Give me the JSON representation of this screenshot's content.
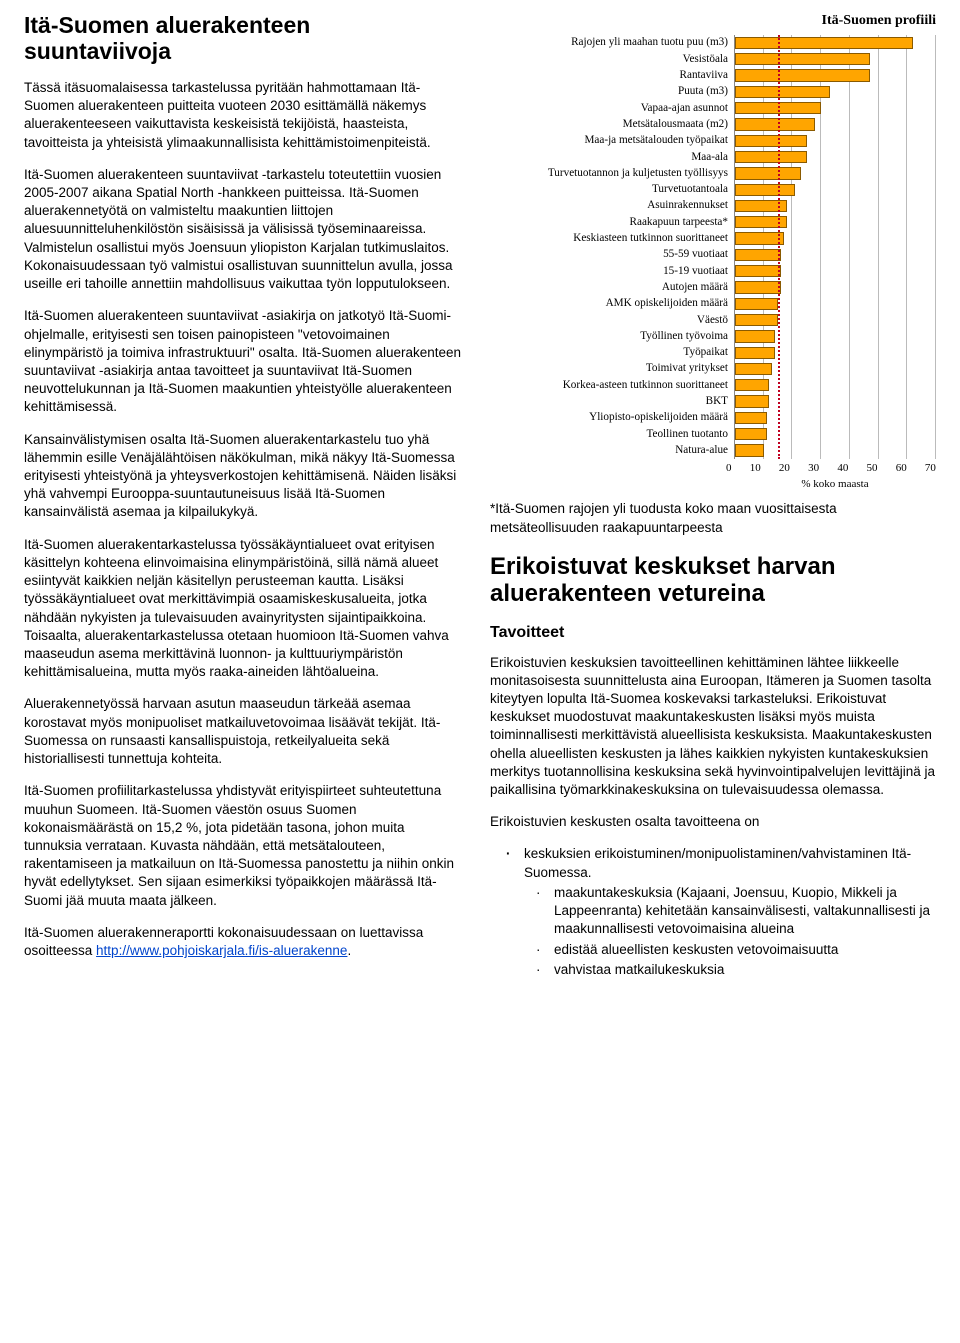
{
  "left": {
    "title": "Itä-Suomen aluerakenteen suuntaviivoja",
    "p1": "Tässä itäsuomalaisessa tarkastelussa pyritään hahmottamaan Itä-Suomen aluerakenteen puitteita vuoteen 2030 esittämällä näkemys aluerakenteeseen vaikuttavista keskeisistä tekijöistä, haasteista, tavoitteista ja yhteisistä ylimaakunnallisista kehittämistoimenpiteistä.",
    "p2": "Itä-Suomen aluerakenteen suuntaviivat -tarkastelu toteutettiin vuosien 2005-2007 aikana Spatial North -hankkeen puitteissa. Itä-Suomen aluerakennetyötä on valmisteltu maakuntien liittojen aluesuunnitteluhenkilöstön sisäisissä ja välisissä työseminaareissa. Valmistelun osallistui myös Joensuun yliopiston Karjalan tutkimuslaitos. Kokonaisuudessaan työ valmistui osallistuvan suunnittelun avulla, jossa useille eri tahoille annettiin mahdollisuus vaikuttaa työn lopputulokseen.",
    "p3": "Itä-Suomen aluerakenteen suuntaviivat -asiakirja on jatkotyö Itä-Suomi-ohjelmalle, erityisesti sen toisen painopisteen \"vetovoimainen elinympäristö ja toimiva infrastruktuuri\" osalta. Itä-Suomen aluerakenteen suuntaviivat -asiakirja antaa tavoitteet ja suuntaviivat Itä-Suomen neuvottelukunnan ja Itä-Suomen maakuntien yhteistyölle aluerakenteen kehittämisessä.",
    "p4": "Kansainvälistymisen osalta Itä-Suomen aluerakentarkastelu tuo yhä lähemmin esille Venäjälähtöisen näkökulman, mikä näkyy Itä-Suomessa erityisesti yhteistyönä ja yhteysverkostojen kehittämisenä. Näiden lisäksi yhä vahvempi Eurooppa-suuntautuneisuus lisää Itä-Suomen kansainvälistä asemaa ja kilpailukykyä.",
    "p5": "Itä-Suomen aluerakentarkastelussa työssäkäyntialueet ovat erityisen käsittelyn kohteena elinvoimaisina elinympäristöinä, sillä nämä alueet esiintyvät kaikkien neljän käsitellyn perusteeman kautta. Lisäksi työssäkäyntialueet ovat merkittävimpiä osaamiskeskusalueita, jotka nähdään nykyisten ja tulevaisuuden avainyritysten sijaintipaikkoina. Toisaalta, aluerakentarkastelussa otetaan huomioon Itä-Suomen vahva maaseudun asema merkittävinä luonnon- ja kulttuuriympäristön kehittämisalueina, mutta myös raaka-aineiden lähtöalueina.",
    "p6": "Aluerakennetyössä harvaan asutun maaseudun tärkeää asemaa korostavat myös monipuoliset matkailuvetovoimaa lisäävät tekijät. Itä-Suomessa on runsaasti kansallispuistoja, retkeilyalueita sekä historiallisesti tunnettuja kohteita.",
    "p7": "Itä-Suomen profiilitarkastelussa yhdistyvät erityispiirteet suhteutettuna muuhun Suomeen. Itä-Suomen väestön osuus Suomen kokonaismäärästä on 15,2 %, jota pidetään tasona, johon muita tunnuksia verrataan. Kuvasta nähdään, että metsätalouteen, rakentamiseen ja matkailuun on Itä-Suomessa panostettu ja niihin onkin hyvät edellytykset. Sen sijaan esimerkiksi työpaikkojen määrässä Itä-Suomi jää muuta maata jälkeen.",
    "p8a": "Itä-Suomen aluerakenneraportti kokonaisuudessaan on luettavissa osoitteessa ",
    "p8link": "http://www.pohjoiskarjala.fi/is-aluerakenne",
    "p8b": "."
  },
  "chart": {
    "title": "Itä-Suomen profiili",
    "xlabel": "% koko maasta",
    "xmax": 70,
    "xticks": [
      "0",
      "10",
      "20",
      "30",
      "40",
      "50",
      "60",
      "70"
    ],
    "ref_value": 15.2,
    "bar_color": "#ffa500",
    "bar_border": "#8a5a00",
    "ref_color": "#c00020",
    "grid_color": "#bbbbbb",
    "items": [
      {
        "label": "Rajojen yli maahan tuotu puu (m3)",
        "value": 62
      },
      {
        "label": "Vesistöala",
        "value": 47
      },
      {
        "label": "Rantaviiva",
        "value": 47
      },
      {
        "label": "Puuta (m3)",
        "value": 33
      },
      {
        "label": "Vapaa-ajan asunnot",
        "value": 30
      },
      {
        "label": "Metsätalousmaata (m2)",
        "value": 28
      },
      {
        "label": "Maa-ja metsätalouden työpaikat",
        "value": 25
      },
      {
        "label": "Maa-ala",
        "value": 25
      },
      {
        "label": "Turvetuotannon ja kuljetusten työllisyys",
        "value": 23
      },
      {
        "label": "Turvetuotantoala",
        "value": 21
      },
      {
        "label": "Asuinrakennukset",
        "value": 18
      },
      {
        "label": "Raakapuun tarpeesta*",
        "value": 18
      },
      {
        "label": "Keskiasteen tutkinnon suorittaneet",
        "value": 17
      },
      {
        "label": "55-59 vuotiaat",
        "value": 16
      },
      {
        "label": "15-19 vuotiaat",
        "value": 16
      },
      {
        "label": "Autojen määrä",
        "value": 16
      },
      {
        "label": "AMK opiskelijoiden määrä",
        "value": 15
      },
      {
        "label": "Väestö",
        "value": 15
      },
      {
        "label": "Työllinen työvoima",
        "value": 14
      },
      {
        "label": "Työpaikat",
        "value": 14
      },
      {
        "label": "Toimivat yritykset",
        "value": 13
      },
      {
        "label": "Korkea-asteen tutkinnon suorittaneet",
        "value": 12
      },
      {
        "label": "BKT",
        "value": 12
      },
      {
        "label": "Yliopisto-opiskelijoiden määrä",
        "value": 11
      },
      {
        "label": "Teollinen tuotanto",
        "value": 11
      },
      {
        "label": "Natura-alue",
        "value": 10
      }
    ]
  },
  "right": {
    "footnote": "*Itä-Suomen rajojen yli tuodusta koko maan vuosittaisesta metsäteollisuuden raakapuuntarpeesta",
    "section_title": "Erikoistuvat keskukset harvan aluerakenteen vetureina",
    "sub_title": "Tavoitteet",
    "p1": "Erikoistuvien keskuksien tavoitteellinen kehittäminen lähtee liikkeelle monitasoisesta suunnittelusta aina Euroopan, Itämeren ja Suomen tasolta kiteytyen lopulta Itä-Suomea koskevaksi tarkasteluksi. Erikoistuvat keskukset muodostuvat maakuntakeskusten lisäksi myös muista toiminnallisesti merkittävistä alueellisista keskuksista. Maakuntakeskusten ohella alueellisten keskusten ja lähes kaikkien nykyisten kuntakeskuksien merkitys tuotannollisina keskuksina sekä hyvinvointipalvelujen levittäjinä ja paikallisina työmarkkinakeskuksina on tulevaisuudessa olemassa.",
    "p2": "Erikoistuvien keskusten osalta tavoitteena on",
    "bullets": {
      "b1": "keskuksien erikoistuminen/monipuolistaminen/vahvistaminen Itä-Suomessa.",
      "b1a": "maakuntakeskuksia (Kajaani, Joensuu, Kuopio, Mikkeli ja Lappeenranta) kehitetään kansainvälisesti, valtakunnallisesti ja maakunnallisesti vetovoimaisina alueina",
      "b1b": "edistää alueellisten keskusten vetovoimaisuutta",
      "b1c": "vahvistaa matkailukeskuksia"
    }
  }
}
